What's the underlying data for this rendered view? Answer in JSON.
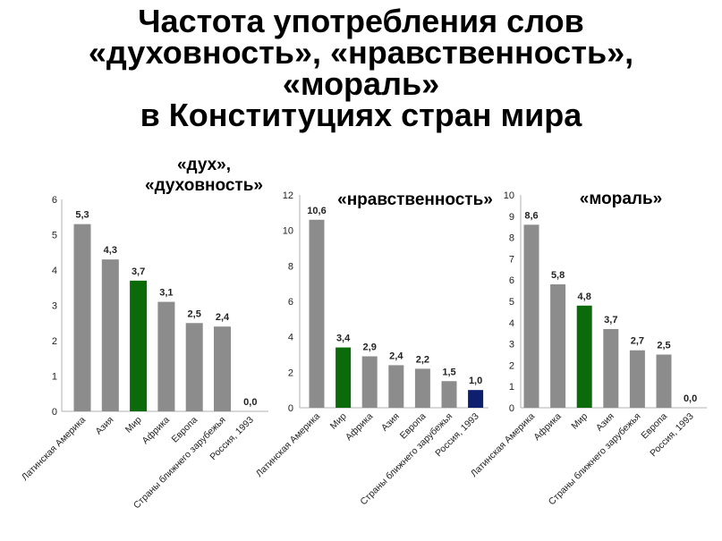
{
  "title_lines": [
    "Частота употребления слов",
    "«духовность», «нравственность»,",
    "«мораль»",
    "в Конституциях стран мира"
  ],
  "colors": {
    "bar_default": "#8c8c8c",
    "bar_world": "#0b6b0b",
    "bar_russia": "#0d1f6e",
    "russia_label": "#1f3a7a"
  },
  "chart_data": [
    {
      "type": "bar",
      "title_lines": [
        "«дух»,",
        "«духовность»"
      ],
      "categories": [
        "Латинская Америка",
        "Азия",
        "Мир",
        "Африка",
        "Европа",
        "Страны ближнего зарубежья",
        "Россия, 1993"
      ],
      "values": [
        5.3,
        4.3,
        3.7,
        3.1,
        2.5,
        2.4,
        0.0
      ],
      "labels": [
        "5,3",
        "4,3",
        "3,7",
        "3,1",
        "2,5",
        "2,4",
        "0,0"
      ],
      "highlight": [
        "default",
        "default",
        "world",
        "default",
        "default",
        "default",
        "russia"
      ],
      "ylim": [
        0,
        6
      ],
      "yticks": [
        "0",
        "1",
        "2",
        "3",
        "4",
        "5",
        "6"
      ]
    },
    {
      "type": "bar",
      "title_lines": [
        "«нравственность»"
      ],
      "categories": [
        "Латинская Америка",
        "Мир",
        "Африка",
        "Азия",
        "Европа",
        "Страны ближнего зарубежья",
        "Россия, 1993"
      ],
      "values": [
        10.6,
        3.4,
        2.9,
        2.4,
        2.2,
        1.5,
        1.0
      ],
      "labels": [
        "10,6",
        "3,4",
        "2,9",
        "2,4",
        "2,2",
        "1,5",
        "1,0"
      ],
      "highlight": [
        "default",
        "world",
        "default",
        "default",
        "default",
        "default",
        "russia"
      ],
      "ylim": [
        0,
        12
      ],
      "yticks": [
        "0",
        "2",
        "4",
        "6",
        "8",
        "10",
        "12"
      ]
    },
    {
      "type": "bar",
      "title_lines": [
        "«мораль»"
      ],
      "categories": [
        "Латинская Америка",
        "Африка",
        "Мир",
        "Азия",
        "Страны ближнего зарубежья",
        "Европа",
        "Россия, 1993"
      ],
      "values": [
        8.6,
        5.8,
        4.8,
        3.7,
        2.7,
        2.5,
        0.0
      ],
      "labels": [
        "8,6",
        "5,8",
        "4,8",
        "3,7",
        "2,7",
        "2,5",
        "0,0"
      ],
      "highlight": [
        "default",
        "default",
        "world",
        "default",
        "default",
        "default",
        "russia"
      ],
      "ylim": [
        0,
        10
      ],
      "yticks": [
        "0",
        "1",
        "2",
        "3",
        "4",
        "5",
        "6",
        "7",
        "8",
        "9",
        "10"
      ]
    }
  ]
}
